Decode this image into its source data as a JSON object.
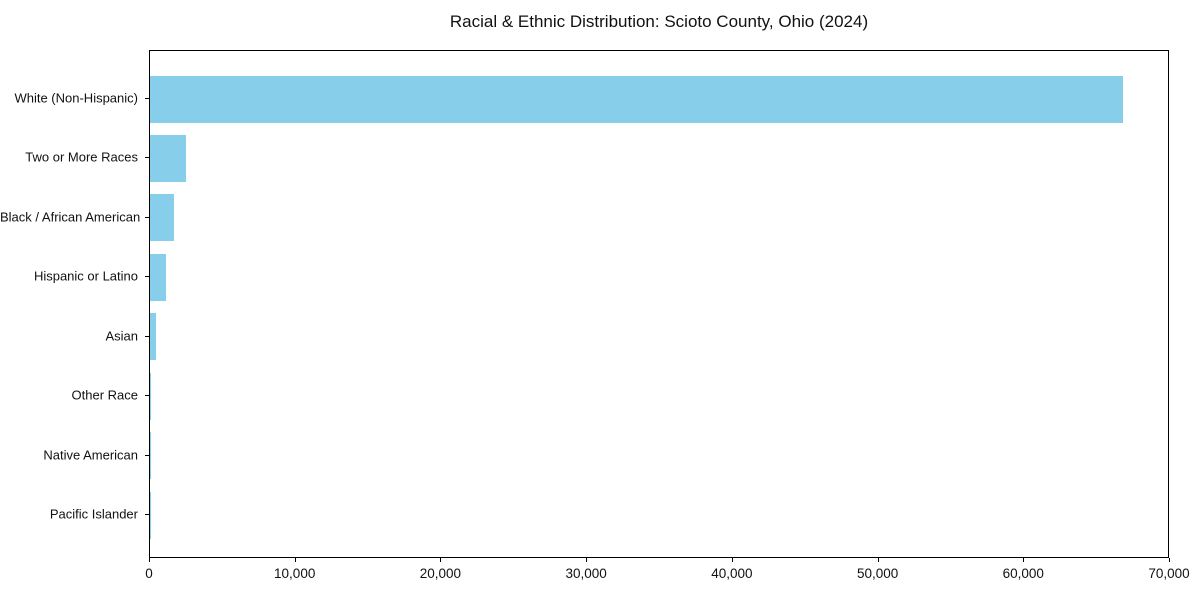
{
  "chart_data": {
    "type": "bar",
    "orientation": "horizontal",
    "title": "Racial & Ethnic Distribution: Scioto County, Ohio (2024)",
    "categories": [
      "White (Non-Hispanic)",
      "Two or More Races",
      "Black / African American",
      "Hispanic or Latino",
      "Asian",
      "Other Race",
      "Native American",
      "Pacific Islander"
    ],
    "values": [
      66800,
      2450,
      1650,
      1100,
      400,
      90,
      30,
      15
    ],
    "xlabel": "",
    "ylabel": "",
    "xlim": [
      0,
      70000
    ],
    "xticks": [
      0,
      10000,
      20000,
      30000,
      40000,
      50000,
      60000,
      70000
    ],
    "xtick_labels": [
      "0",
      "10,000",
      "20,000",
      "30,000",
      "40,000",
      "50,000",
      "60,000",
      "70,000"
    ],
    "bar_color": "#87CEEB",
    "grid": false,
    "legend": null
  }
}
